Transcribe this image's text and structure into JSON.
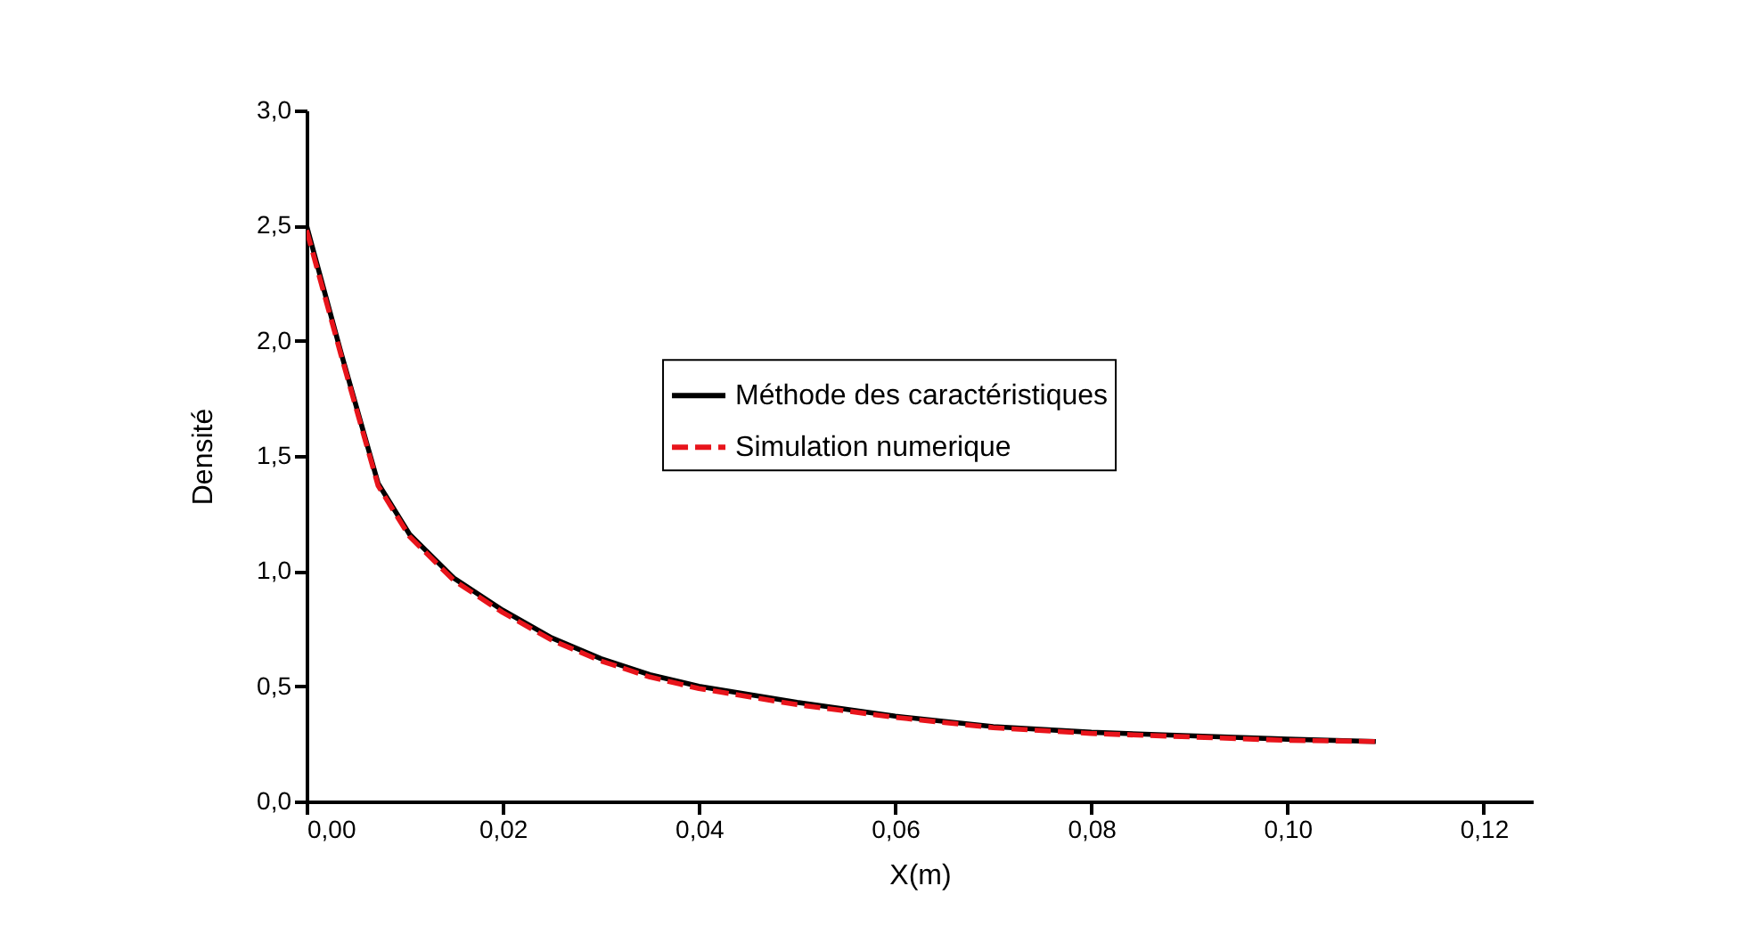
{
  "chart_data": {
    "type": "line",
    "xlabel": "X(m)",
    "ylabel": "Densité",
    "x": [
      0,
      0.0035,
      0.0073,
      0.0105,
      0.015,
      0.02,
      0.025,
      0.03,
      0.035,
      0.04,
      0.05,
      0.06,
      0.07,
      0.08,
      0.09,
      0.1,
      0.109
    ],
    "series": [
      {
        "name": "Méthode des caractéristiques",
        "color": "#000000",
        "line_style": "solid",
        "values": [
          2.5,
          1.95,
          1.38,
          1.16,
          0.97,
          0.83,
          0.71,
          0.62,
          0.55,
          0.5,
          0.43,
          0.37,
          0.325,
          0.3,
          0.285,
          0.27,
          0.26
        ]
      },
      {
        "name": "Simulation numerique",
        "color": "#e8141b",
        "line_style": "dashed",
        "values": [
          2.48,
          1.94,
          1.37,
          1.15,
          0.96,
          0.82,
          0.7,
          0.61,
          0.54,
          0.49,
          0.42,
          0.365,
          0.32,
          0.295,
          0.28,
          0.265,
          0.26
        ]
      }
    ],
    "xlim": [
      0,
      0.125
    ],
    "ylim": [
      0,
      3
    ],
    "xticks": [
      {
        "value": 0,
        "label": "0,00"
      },
      {
        "value": 0.02,
        "label": "0,02"
      },
      {
        "value": 0.04,
        "label": "0,04"
      },
      {
        "value": 0.06,
        "label": "0,06"
      },
      {
        "value": 0.08,
        "label": "0,08"
      },
      {
        "value": 0.1,
        "label": "0,10"
      },
      {
        "value": 0.12,
        "label": "0,12"
      }
    ],
    "yticks": [
      {
        "value": 0,
        "label": "0,0"
      },
      {
        "value": 0.5,
        "label": "0,5"
      },
      {
        "value": 1,
        "label": "1,0"
      },
      {
        "value": 1.5,
        "label": "1,5"
      },
      {
        "value": 2,
        "label": "2,0"
      },
      {
        "value": 2.5,
        "label": "2,5"
      },
      {
        "value": 3,
        "label": "3,0"
      }
    ],
    "grid": false,
    "legend": "center"
  }
}
